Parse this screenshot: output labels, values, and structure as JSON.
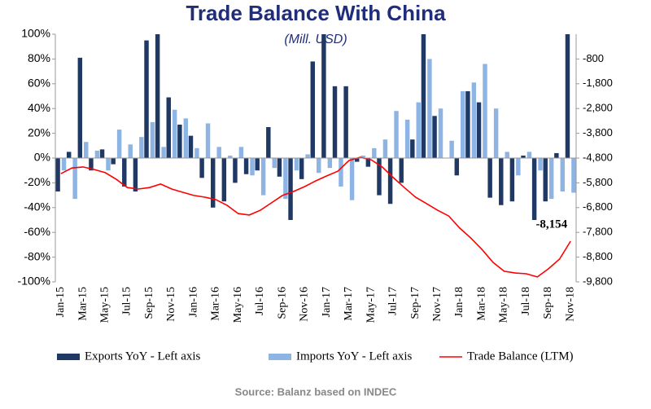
{
  "chart_data": {
    "type": "bar",
    "title": "Trade Balance With China",
    "subtitle": "(Mill. USD)",
    "source": "Source: Balanz based on INDEC",
    "categories": [
      "Jan-15",
      null,
      "Mar-15",
      null,
      "May-15",
      null,
      "Jul-15",
      null,
      "Sep-15",
      null,
      "Nov-15",
      null,
      "Jan-16",
      null,
      "Mar-16",
      null,
      "May-16",
      null,
      "Jul-16",
      null,
      "Sep-16",
      null,
      "Nov-16",
      null,
      "Jan-17",
      null,
      "Mar-17",
      null,
      "May-17",
      null,
      "Jul-17",
      null,
      "Sep-17",
      null,
      "Nov-17",
      null,
      "Jan-18",
      null,
      "Mar-18",
      null,
      "May-18",
      null,
      "Jul-18",
      null,
      "Sep-18",
      null,
      "Nov-18"
    ],
    "series": [
      {
        "name": "Exports YoY - Left axis",
        "color": "#1f3864",
        "axis": "y",
        "type": "bar",
        "values": [
          -27,
          5,
          81,
          -10,
          7,
          -5,
          -23,
          -27,
          95,
          100,
          49,
          27,
          18,
          -16,
          -40,
          -35,
          -20,
          -13,
          -10,
          25,
          -15,
          -50,
          -17,
          78,
          100,
          58,
          58,
          -3,
          -7,
          -30,
          -37,
          -20,
          15,
          100,
          34,
          0,
          -14,
          54,
          45,
          -32,
          -38,
          -35,
          2,
          -50,
          -35,
          4,
          100
        ]
      },
      {
        "name": "Imports YoY - Left axis",
        "color": "#8eb4e3",
        "axis": "y",
        "type": "bar",
        "values": [
          -10,
          -33,
          13,
          6,
          -10,
          23,
          11,
          17,
          29,
          9,
          39,
          32,
          8,
          28,
          9,
          2,
          9,
          -14,
          -30,
          -8,
          -33,
          -10,
          3,
          -12,
          -8,
          -23,
          -34,
          2,
          8,
          15,
          38,
          31,
          45,
          80,
          40,
          14,
          54,
          61,
          76,
          40,
          5,
          -14,
          5,
          -10,
          -33,
          -27,
          -28
        ]
      },
      {
        "name": "Trade Balance (LTM)",
        "color": "#ff0000",
        "axis": "y2",
        "type": "line",
        "values": [
          -5430,
          -5200,
          -5160,
          -5260,
          -5390,
          -5660,
          -5990,
          -6050,
          -5990,
          -5850,
          -6050,
          -6180,
          -6310,
          -6380,
          -6480,
          -6710,
          -7040,
          -7100,
          -6910,
          -6610,
          -6310,
          -6150,
          -5950,
          -5720,
          -5520,
          -5330,
          -4900,
          -4770,
          -4870,
          -5160,
          -5590,
          -5990,
          -6380,
          -6640,
          -6910,
          -7140,
          -7630,
          -8030,
          -8490,
          -9010,
          -9370,
          -9440,
          -9470,
          -9600,
          -9270,
          -8880,
          -8154
        ],
        "value_labels": [
          null,
          null,
          null,
          null,
          null,
          null,
          null,
          null,
          null,
          null,
          null,
          null,
          null,
          null,
          null,
          null,
          null,
          null,
          null,
          null,
          null,
          null,
          null,
          null,
          null,
          null,
          null,
          null,
          null,
          null,
          null,
          null,
          null,
          null,
          null,
          null,
          null,
          null,
          null,
          null,
          null,
          null,
          null,
          null,
          null,
          null,
          "-8,154"
        ]
      }
    ],
    "ylim": [
      -100,
      100
    ],
    "yticks": [
      {
        "value": -100,
        "label": "-100%"
      },
      {
        "value": -80,
        "label": "-80%"
      },
      {
        "value": -60,
        "label": "-60%"
      },
      {
        "value": -40,
        "label": "-40%"
      },
      {
        "value": -20,
        "label": "-20%"
      },
      {
        "value": 0,
        "label": "0%"
      },
      {
        "value": 20,
        "label": "20%"
      },
      {
        "value": 40,
        "label": "40%"
      },
      {
        "value": 60,
        "label": "60%"
      },
      {
        "value": 80,
        "label": "80%"
      },
      {
        "value": 100,
        "label": "100%"
      }
    ],
    "y2lim": [
      -9800,
      200
    ],
    "y2ticks": [
      -800,
      {
        "value": -1800,
        "label": "-1,800"
      },
      {
        "value": -2800,
        "label": "-2,800"
      },
      {
        "value": -3800,
        "label": "-3,800"
      },
      {
        "value": -4800,
        "label": "-4,800"
      },
      {
        "value": -5800,
        "label": "-5,800"
      },
      {
        "value": -6800,
        "label": "-6,800"
      },
      {
        "value": -7800,
        "label": "-7,800"
      },
      {
        "value": -8800,
        "label": "-8,800"
      },
      {
        "value": -9800,
        "label": "-9,800"
      }
    ],
    "grid": false,
    "legend": "bottom"
  }
}
